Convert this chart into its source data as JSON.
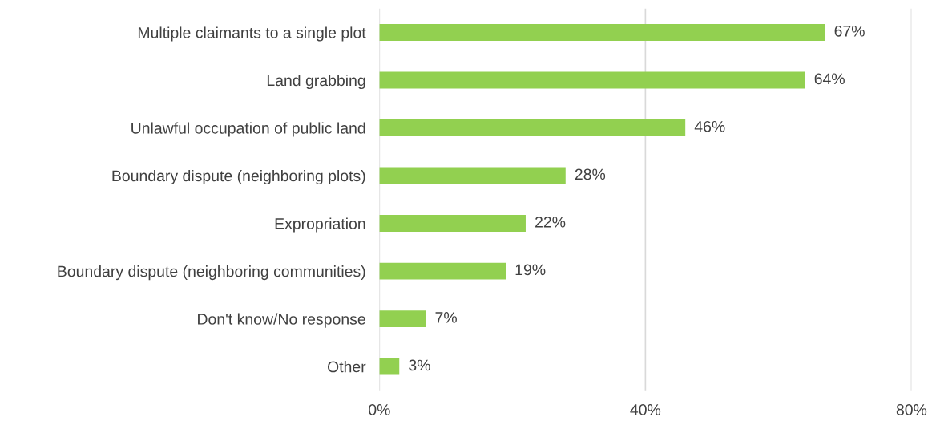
{
  "chart_data": {
    "type": "bar",
    "orientation": "horizontal",
    "categories": [
      "Multiple claimants to a single plot",
      "Land grabbing",
      "Unlawful occupation of public land",
      "Boundary dispute (neighboring plots)",
      "Expropriation",
      "Boundary dispute (neighboring communities)",
      "Don't know/No response",
      "Other"
    ],
    "values": [
      67,
      64,
      46,
      28,
      22,
      19,
      7,
      3
    ],
    "value_labels": [
      "67%",
      "64%",
      "46%",
      "28%",
      "22%",
      "19%",
      "7%",
      "3%"
    ],
    "color": "#92d050",
    "xlim": [
      0,
      80
    ],
    "xticks": [
      {
        "value": 0,
        "label": "0%"
      },
      {
        "value": 40,
        "label": "40%"
      },
      {
        "value": 80,
        "label": "80%"
      }
    ],
    "grid": "x",
    "legend": false
  }
}
